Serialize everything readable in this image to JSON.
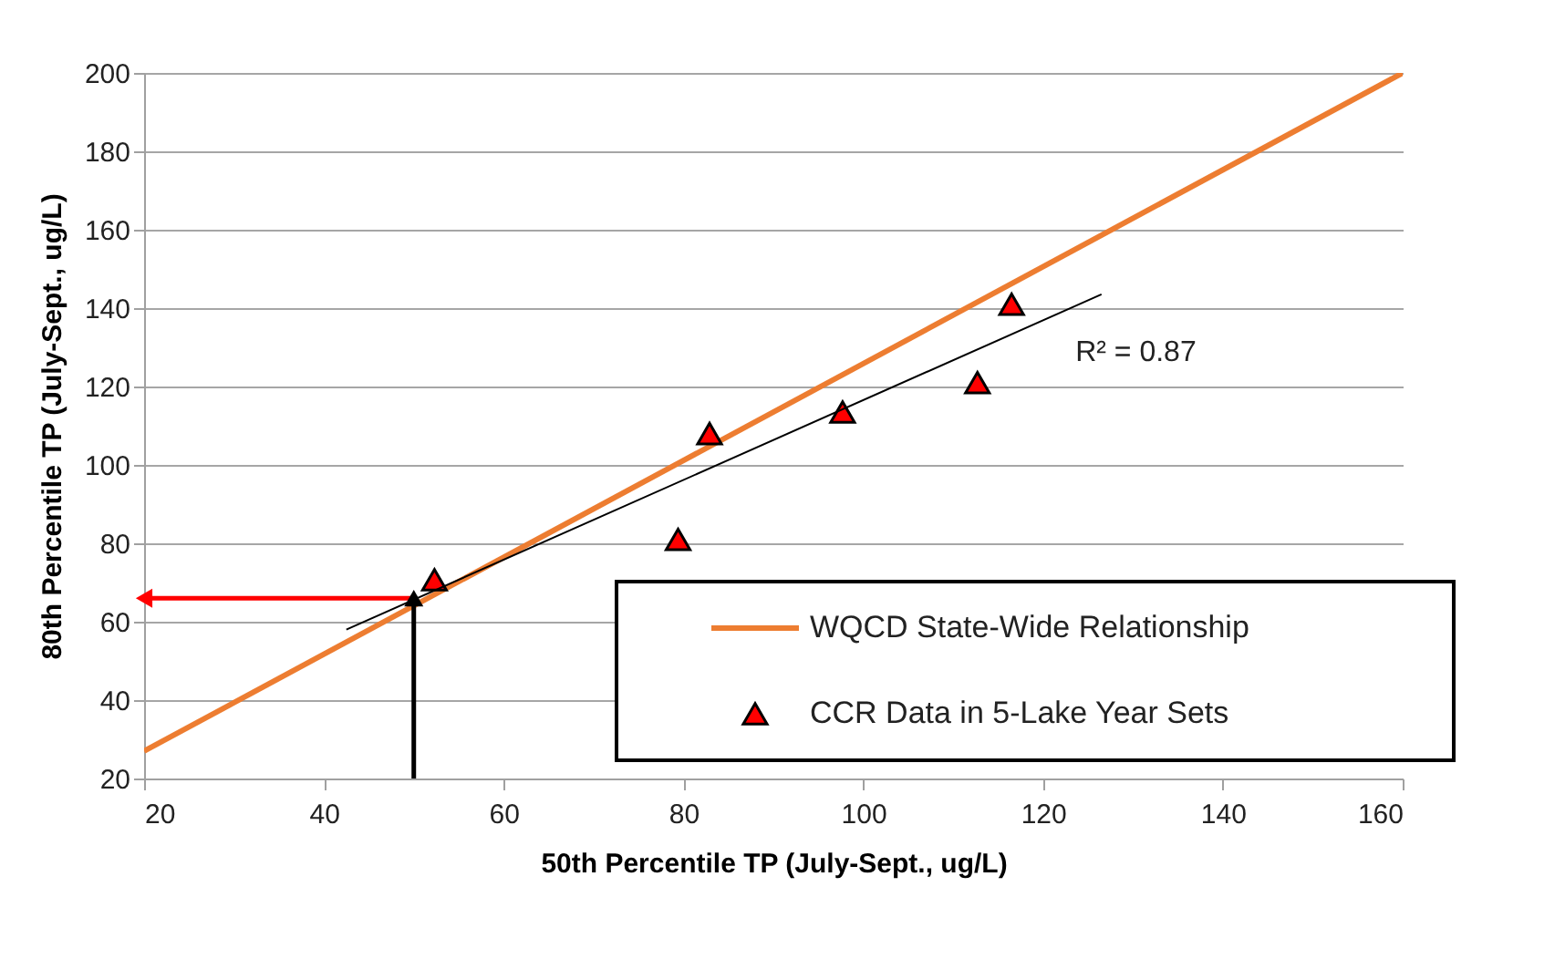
{
  "chart_data": {
    "type": "scatter",
    "xlabel": "50th Percentile TP (July-Sept., ug/L)",
    "ylabel": "80th Percentile TP (July-Sept., ug/L)",
    "xlim": [
      20,
      160
    ],
    "xticks": [
      20,
      40,
      60,
      80,
      100,
      120,
      140,
      160
    ],
    "ylim": [
      20,
      200
    ],
    "yticks": [
      20,
      40,
      60,
      80,
      100,
      120,
      140,
      160,
      180,
      200
    ],
    "grid": "y",
    "legend": "bottom right",
    "series": [
      {
        "name": "WQCD State-Wide Relationship",
        "type": "line",
        "color": "#ed7d31",
        "x": [
          20,
          160
        ],
        "values": [
          27,
          200
        ]
      },
      {
        "name": "CCR Data in 5-Lake Year Sets",
        "color": "#ff0000",
        "marker": "triangle",
        "x": [
          52.3,
          79.4,
          82.9,
          97.7,
          112.7,
          116.5
        ],
        "values": [
          70.7,
          81,
          108,
          113.5,
          121,
          141
        ]
      },
      {
        "type": "line",
        "color": "#000000",
        "marker": "none",
        "x": [
          42.5,
          126.5
        ],
        "values": [
          58,
          143.5
        ]
      },
      {
        "type": "line",
        "color": "#ff0000",
        "marker": "triangle",
        "x": [
          50,
          20
        ],
        "values": [
          66,
          66
        ]
      },
      {
        "type": "line",
        "color": "#000000",
        "marker": "triangle",
        "x": [
          50,
          50
        ],
        "values": [
          20,
          66
        ]
      }
    ],
    "annotations": [
      "R² = 0.87"
    ]
  }
}
